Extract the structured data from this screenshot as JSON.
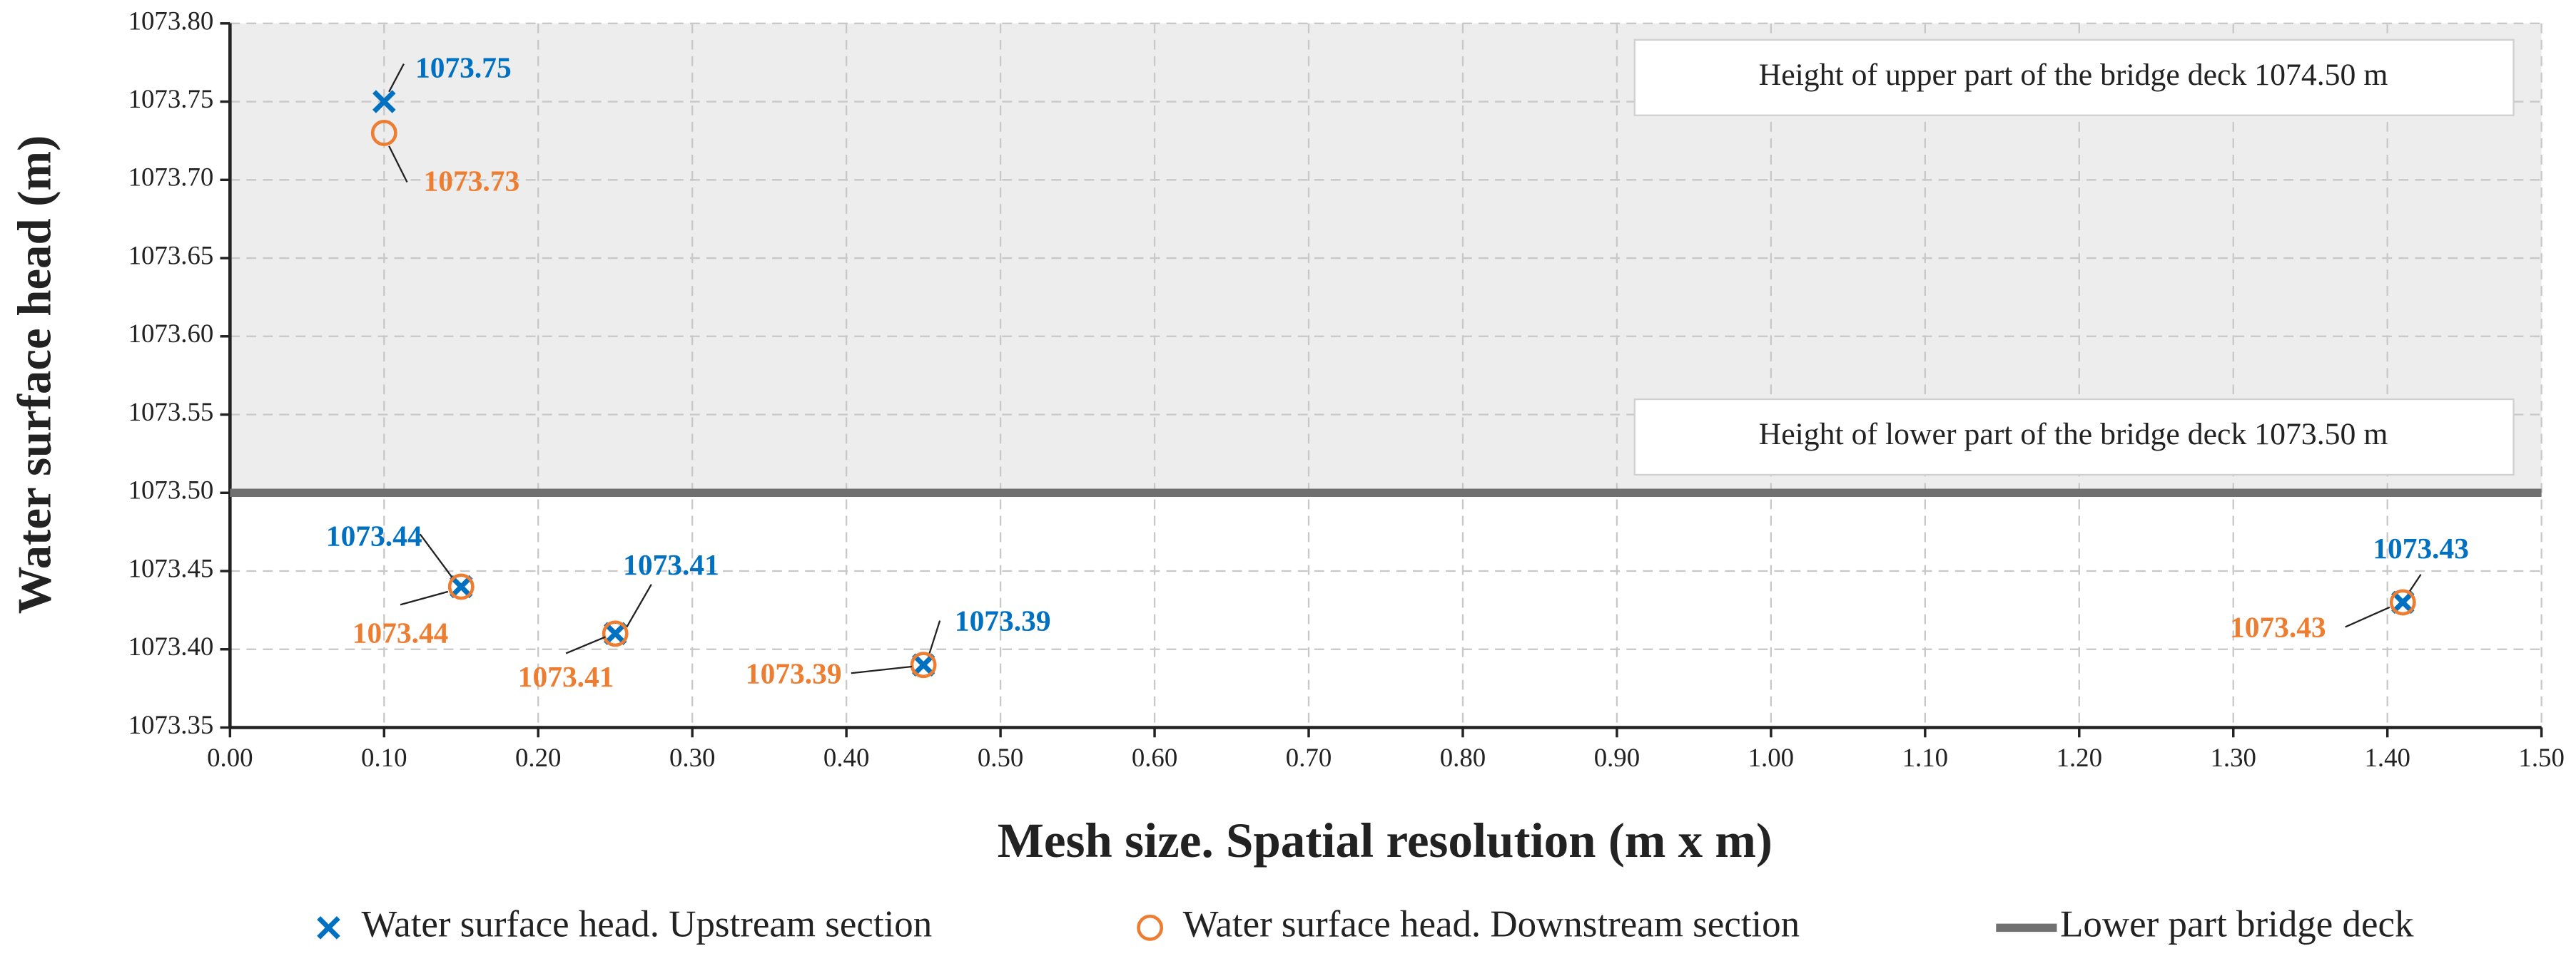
{
  "chart_data": {
    "type": "scatter",
    "x_label": "Mesh size. Spatial resolution (m x m)",
    "y_label": "Water surface head (m)",
    "xlim": [
      0,
      1.5
    ],
    "ylim": [
      1073.35,
      1073.8
    ],
    "xticks": [
      {
        "value": 0,
        "label": "0.00"
      },
      {
        "value": 0.1,
        "label": "0.10"
      },
      {
        "value": 0.2,
        "label": "0.20"
      },
      {
        "value": 0.3,
        "label": "0.30"
      },
      {
        "value": 0.4,
        "label": "0.40"
      },
      {
        "value": 0.5,
        "label": "0.50"
      },
      {
        "value": 0.6,
        "label": "0.60"
      },
      {
        "value": 0.7,
        "label": "0.70"
      },
      {
        "value": 0.8,
        "label": "0.80"
      },
      {
        "value": 0.9,
        "label": "0.90"
      },
      {
        "value": 1.0,
        "label": "1.00"
      },
      {
        "value": 1.1,
        "label": "1.10"
      },
      {
        "value": 1.2,
        "label": "1.20"
      },
      {
        "value": 1.3,
        "label": "1.30"
      },
      {
        "value": 1.4,
        "label": "1.40"
      },
      {
        "value": 1.5,
        "label": "1.50"
      }
    ],
    "yticks": [
      {
        "value": 1073.35,
        "label": "1073.35"
      },
      {
        "value": 1073.4,
        "label": "1073.40"
      },
      {
        "value": 1073.45,
        "label": "1073.45"
      },
      {
        "value": 1073.5,
        "label": "1073.50"
      },
      {
        "value": 1073.55,
        "label": "1073.55"
      },
      {
        "value": 1073.6,
        "label": "1073.60"
      },
      {
        "value": 1073.65,
        "label": "1073.65"
      },
      {
        "value": 1073.7,
        "label": "1073.70"
      },
      {
        "value": 1073.75,
        "label": "1073.75"
      },
      {
        "value": 1073.8,
        "label": "1073.80"
      }
    ],
    "grid": true,
    "series": [
      {
        "name": "Water surface head. Upstream section",
        "color": "#0070c0",
        "marker": "x",
        "x": [
          0.1,
          0.15,
          0.25,
          0.45,
          1.41
        ],
        "values": [
          1073.75,
          1073.44,
          1073.41,
          1073.39,
          1073.43
        ]
      },
      {
        "name": "Water surface head. Downstream section",
        "color": "#ed7d31",
        "marker": "circle",
        "x": [
          0.1,
          0.15,
          0.25,
          0.45,
          1.41
        ],
        "values": [
          1073.73,
          1073.44,
          1073.41,
          1073.39,
          1073.43
        ]
      }
    ],
    "deck": {
      "name": "Lower part bridge deck",
      "color": "#707070",
      "value": 1073.5
    },
    "annotations": [
      "Height of upper part of the bridge deck 1074.50 m",
      "Height of lower part of the bridge deck 1073.50 m"
    ],
    "legend": "bottom"
  }
}
